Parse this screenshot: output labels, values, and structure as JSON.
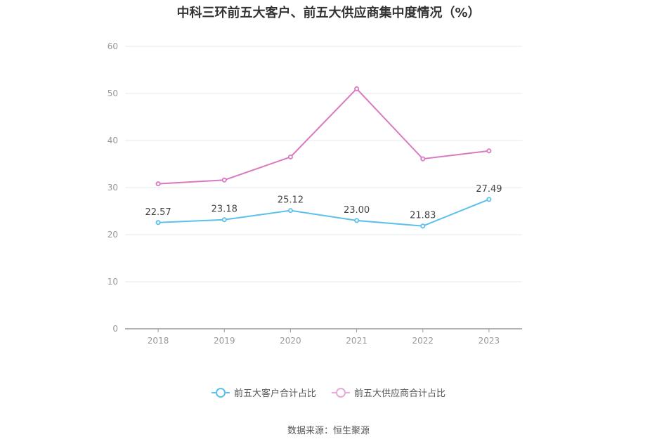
{
  "chart_data": {
    "type": "line",
    "title": "中科三环前五大客户、前五大供应商集中度情况（%）",
    "categories": [
      "2018",
      "2019",
      "2020",
      "2021",
      "2022",
      "2023"
    ],
    "ylim": [
      0,
      60
    ],
    "yticks": [
      0,
      10,
      20,
      30,
      40,
      50,
      60
    ],
    "grid": true,
    "legend_position": "bottom",
    "series": [
      {
        "name": "前五大客户合计占比",
        "color": "#5bc0eb",
        "values": [
          22.57,
          23.18,
          25.12,
          23.0,
          21.83,
          27.49
        ],
        "labels": [
          "22.57",
          "23.18",
          "25.12",
          "23.00",
          "21.83",
          "27.49"
        ]
      },
      {
        "name": "前五大供应商合计占比",
        "color": "#d97ac0",
        "values": [
          30.8,
          31.6,
          36.5,
          51.0,
          36.1,
          37.8
        ],
        "labels": []
      }
    ]
  },
  "source": "数据来源：恒生聚源"
}
